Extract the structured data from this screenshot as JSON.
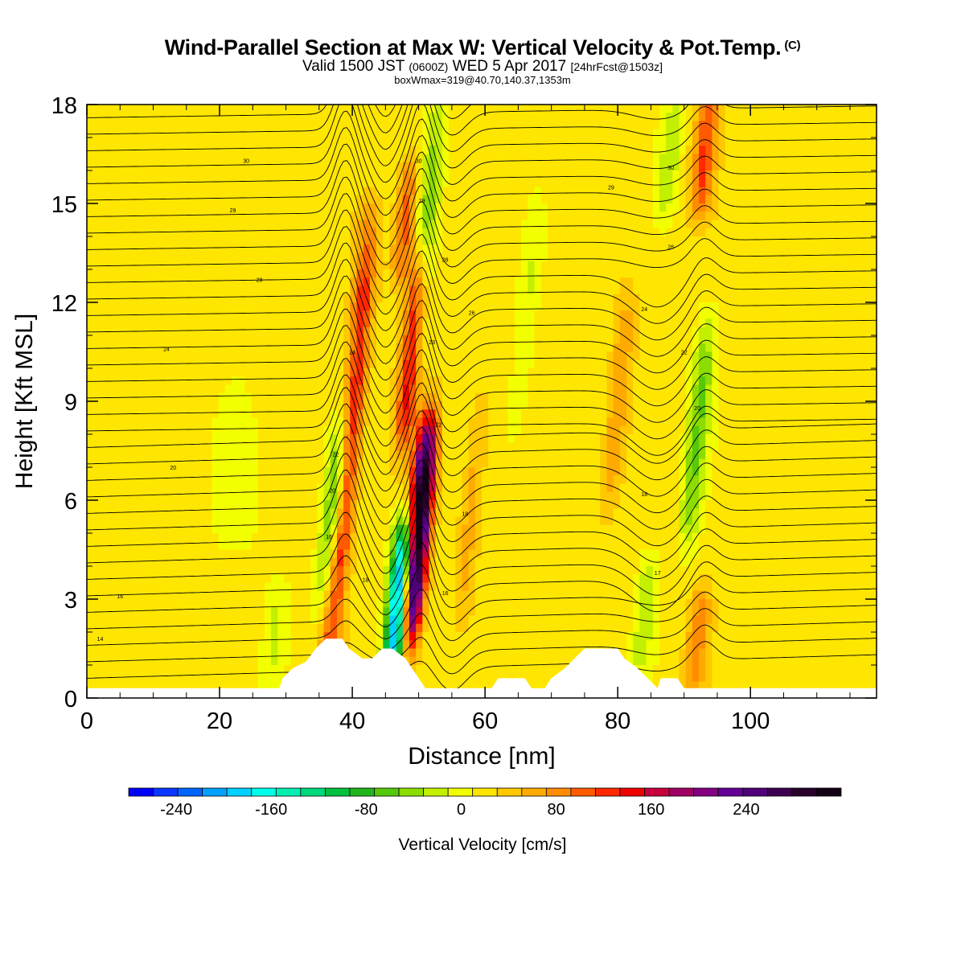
{
  "header": {
    "title_main": "Wind-Parallel Section at Max W: Vertical Velocity & Pot.Temp.",
    "title_mark": "(C)",
    "valid_prefix": "Valid 1500 JST",
    "valid_zulu": "(0600Z)",
    "valid_date": "WED 5 Apr 2017",
    "valid_fcst": "[24hrFcst@1503z]",
    "box_line": "boxWmax=319@40.70,140.37,1353m"
  },
  "chart_data": {
    "type": "heatmap",
    "xlabel": "Distance [nm]",
    "ylabel": "Height [Kft MSL]",
    "xlim": [
      0,
      119
    ],
    "ylim": [
      0,
      18
    ],
    "x_ticks": [
      0,
      20,
      40,
      60,
      80,
      100
    ],
    "y_ticks": [
      0,
      3,
      6,
      9,
      12,
      15,
      18
    ],
    "colorbar": {
      "label": "Vertical Velocity [cm/s]",
      "min": -280,
      "max": 300,
      "step": 20,
      "tick_values": [
        -240,
        -160,
        -80,
        0,
        80,
        160,
        240
      ],
      "colors": [
        "#0000ff",
        "#0a37ff",
        "#0064ff",
        "#00a0ff",
        "#00d2ff",
        "#00ffea",
        "#00f0b0",
        "#00d87c",
        "#00c040",
        "#22b41c",
        "#55c80a",
        "#8cdc00",
        "#c3ef00",
        "#f2ff00",
        "#ffe600",
        "#ffc800",
        "#ffaa00",
        "#ff8c00",
        "#ff5a00",
        "#ff2800",
        "#f00000",
        "#c8003c",
        "#a00064",
        "#820082",
        "#640096",
        "#500078",
        "#3c0050",
        "#28002a",
        "#140014"
      ]
    },
    "background_w": 10,
    "updraft_bands": [
      {
        "x": 37,
        "w": 90,
        "bottom": 0.6,
        "top": 4.5
      },
      {
        "x": 40,
        "w": 110,
        "bottom": 4.5,
        "top": 12
      },
      {
        "x": 42,
        "w": 60,
        "bottom": 12,
        "top": 14.5
      },
      {
        "x": 50,
        "w": 300,
        "bottom": 2,
        "top": 8
      },
      {
        "x": 49,
        "w": 140,
        "bottom": 8,
        "top": 13
      },
      {
        "x": 48,
        "w": 80,
        "bottom": 13,
        "top": 16
      },
      {
        "x": 58,
        "w": 40,
        "bottom": 3,
        "top": 9
      },
      {
        "x": 80,
        "w": 50,
        "bottom": 6,
        "top": 12
      },
      {
        "x": 93,
        "w": 90,
        "bottom": 15,
        "top": 18
      },
      {
        "x": 92,
        "w": 60,
        "bottom": 0.5,
        "top": 3
      }
    ],
    "downdraft_bands": [
      {
        "x": 37,
        "w": -80,
        "bottom": 3,
        "top": 8
      },
      {
        "x": 47,
        "w": -240,
        "bottom": 1,
        "top": 5
      },
      {
        "x": 51,
        "w": -60,
        "bottom": 9,
        "top": 18
      },
      {
        "x": 92,
        "w": -70,
        "bottom": 5,
        "top": 11
      },
      {
        "x": 84,
        "w": -40,
        "bottom": 1,
        "top": 4
      },
      {
        "x": 28,
        "w": -30,
        "bottom": 0.3,
        "top": 3
      },
      {
        "x": 66,
        "w": -30,
        "bottom": 8,
        "top": 14
      },
      {
        "x": 88,
        "w": -40,
        "bottom": 15,
        "top": 18
      }
    ],
    "terrain": [
      [
        0,
        0.3
      ],
      [
        29,
        0.3
      ],
      [
        29.5,
        0.6
      ],
      [
        31,
        0.9
      ],
      [
        33,
        1.1
      ],
      [
        34.5,
        1.5
      ],
      [
        36,
        1.8
      ],
      [
        38.5,
        1.8
      ],
      [
        39.5,
        1.5
      ],
      [
        41.5,
        1.2
      ],
      [
        43,
        1.2
      ],
      [
        44.5,
        1.5
      ],
      [
        46,
        1.5
      ],
      [
        48,
        1.2
      ],
      [
        49,
        0.9
      ],
      [
        50,
        0.6
      ],
      [
        51,
        0.3
      ],
      [
        61,
        0.3
      ],
      [
        62,
        0.6
      ],
      [
        66,
        0.6
      ],
      [
        67,
        0.3
      ],
      [
        69,
        0.3
      ],
      [
        70,
        0.6
      ],
      [
        72,
        0.9
      ],
      [
        73.5,
        1.2
      ],
      [
        75,
        1.5
      ],
      [
        80,
        1.5
      ],
      [
        81,
        1.2
      ],
      [
        83,
        0.9
      ],
      [
        84.5,
        0.6
      ],
      [
        86,
        0.3
      ],
      [
        86.5,
        0.6
      ],
      [
        89,
        0.6
      ],
      [
        90,
        0.3
      ],
      [
        119,
        0.3
      ]
    ],
    "theta_labels": [
      {
        "text": "14",
        "x": 2,
        "y": 1.8
      },
      {
        "text": "16",
        "x": 5,
        "y": 3.1
      },
      {
        "text": "20",
        "x": 13,
        "y": 7
      },
      {
        "text": "24",
        "x": 12,
        "y": 10.6
      },
      {
        "text": "28",
        "x": 26,
        "y": 12.7
      },
      {
        "text": "29",
        "x": 22,
        "y": 14.8
      },
      {
        "text": "30",
        "x": 24,
        "y": 16.3
      },
      {
        "text": "16",
        "x": 36.5,
        "y": 4.9
      },
      {
        "text": "18",
        "x": 42,
        "y": 3.6
      },
      {
        "text": "20",
        "x": 37,
        "y": 6.3
      },
      {
        "text": "22",
        "x": 37.5,
        "y": 7.4
      },
      {
        "text": "24",
        "x": 40,
        "y": 10.5
      },
      {
        "text": "30",
        "x": 50,
        "y": 16.3
      },
      {
        "text": "29",
        "x": 50.5,
        "y": 15.1
      },
      {
        "text": "28",
        "x": 54,
        "y": 13.3
      },
      {
        "text": "26",
        "x": 58,
        "y": 11.7
      },
      {
        "text": "23",
        "x": 52,
        "y": 10.8
      },
      {
        "text": "22",
        "x": 53,
        "y": 8.3
      },
      {
        "text": "18",
        "x": 57,
        "y": 5.6
      },
      {
        "text": "16",
        "x": 54,
        "y": 3.2
      },
      {
        "text": "29",
        "x": 79,
        "y": 15.5
      },
      {
        "text": "30",
        "x": 88,
        "y": 16.1
      },
      {
        "text": "26",
        "x": 88,
        "y": 13.7
      },
      {
        "text": "24",
        "x": 84,
        "y": 11.8
      },
      {
        "text": "22",
        "x": 90,
        "y": 10.5
      },
      {
        "text": "20",
        "x": 92,
        "y": 8.8
      },
      {
        "text": "18",
        "x": 84,
        "y": 6.2
      },
      {
        "text": "17",
        "x": 86,
        "y": 3.8
      }
    ]
  }
}
